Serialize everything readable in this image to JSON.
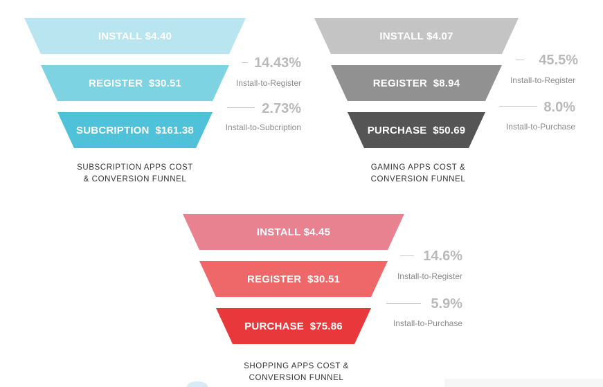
{
  "funnels": [
    {
      "caption": [
        "SUBSCRIPTION APPS COST",
        "& CONVERSION FUNNEL"
      ],
      "stages": [
        {
          "label": "INSTALL $4.40",
          "color": "#b8e5f0"
        },
        {
          "label": "REGISTER  $30.51",
          "color": "#7ed3e3"
        },
        {
          "label": "SUBCRIPTION  $161.38",
          "color": "#4fc1d9"
        }
      ],
      "conversions": [
        {
          "value": "14.43%",
          "label": "Install-to-Register"
        },
        {
          "value": "2.73%",
          "label": "Install-to-Subcription"
        }
      ]
    },
    {
      "caption": [
        "GAMING APPS COST &",
        "CONVERSION FUNNEL"
      ],
      "stages": [
        {
          "label": "INSTALL $4.07",
          "color": "#c4c4c4"
        },
        {
          "label": "REGISTER  $8.94",
          "color": "#919191"
        },
        {
          "label": "PURCHASE  $50.69",
          "color": "#555555"
        }
      ],
      "conversions": [
        {
          "value": "45.5%",
          "label": "Install-to-Register"
        },
        {
          "value": "8.0%",
          "label": "Install-to-Purchase"
        }
      ]
    },
    {
      "caption": [
        "SHOPPING APPS COST &",
        "CONVERSION FUNNEL"
      ],
      "stages": [
        {
          "label": "INSTALL $4.45",
          "color": "#e88190"
        },
        {
          "label": "REGISTER  $30.51",
          "color": "#ee6869"
        },
        {
          "label": "PURCHASE  $75.86",
          "color": "#e8383b"
        }
      ],
      "conversions": [
        {
          "value": "14.6%",
          "label": "Install-to-Register"
        },
        {
          "value": "5.9%",
          "label": "Install-to-Purchase"
        }
      ]
    }
  ]
}
